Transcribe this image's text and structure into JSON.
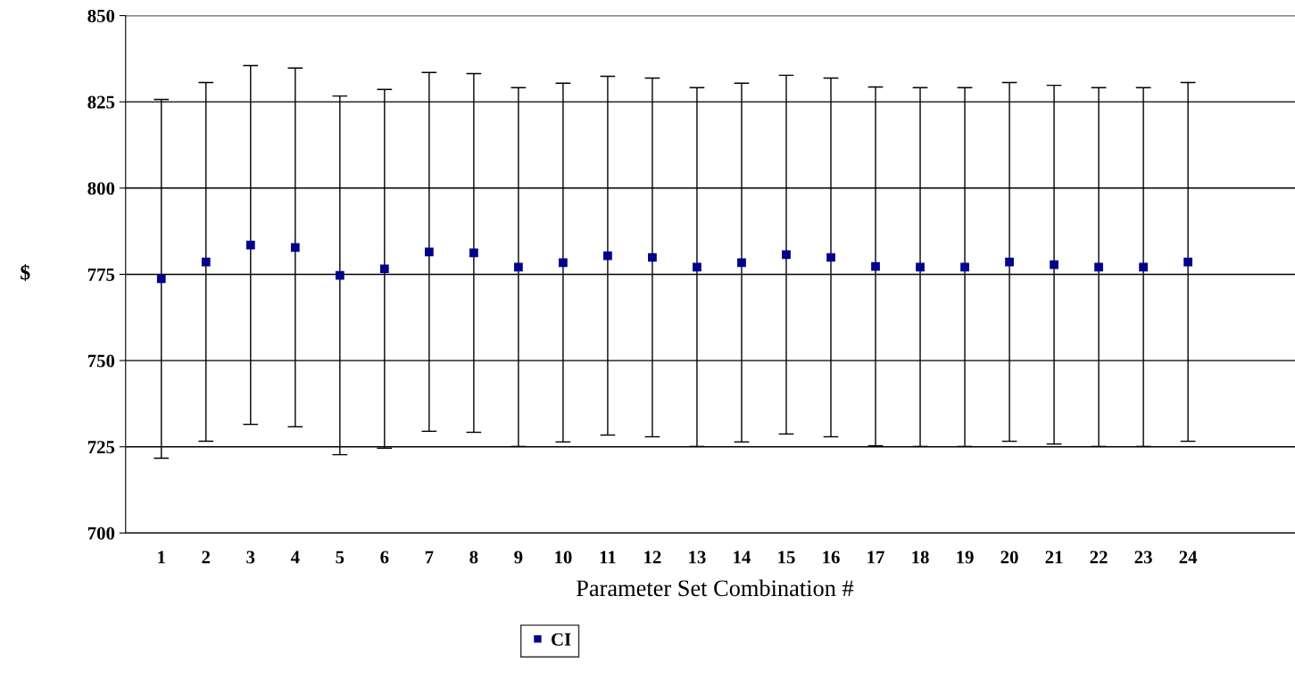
{
  "chart_data": {
    "type": "scatter",
    "xlabel": "Parameter Set Combination #",
    "ylabel": "$",
    "categories": [
      "1",
      "2",
      "3",
      "4",
      "5",
      "6",
      "7",
      "8",
      "9",
      "10",
      "11",
      "12",
      "13",
      "14",
      "15",
      "16",
      "17",
      "18",
      "19",
      "20",
      "21",
      "22",
      "23",
      "24"
    ],
    "series": [
      {
        "name": "CI",
        "color": "#00008b",
        "values": [
          773.7,
          778.6,
          783.5,
          782.8,
          774.7,
          776.6,
          781.5,
          781.2,
          777.1,
          778.4,
          780.4,
          779.9,
          777.1,
          778.4,
          780.7,
          779.9,
          777.3,
          777.1,
          777.1,
          778.6,
          777.8,
          777.1,
          777.1,
          778.6
        ],
        "errors": [
          52,
          52,
          52,
          52,
          52,
          52,
          52,
          52,
          52,
          52,
          52,
          52,
          52,
          52,
          52,
          52,
          52,
          52,
          52,
          52,
          52,
          52,
          52,
          52
        ]
      }
    ],
    "ylim": [
      700,
      850
    ],
    "yticks": [
      700,
      725,
      750,
      775,
      800,
      825,
      850
    ],
    "grid": "y",
    "legend": "bottom",
    "marker": "square"
  }
}
